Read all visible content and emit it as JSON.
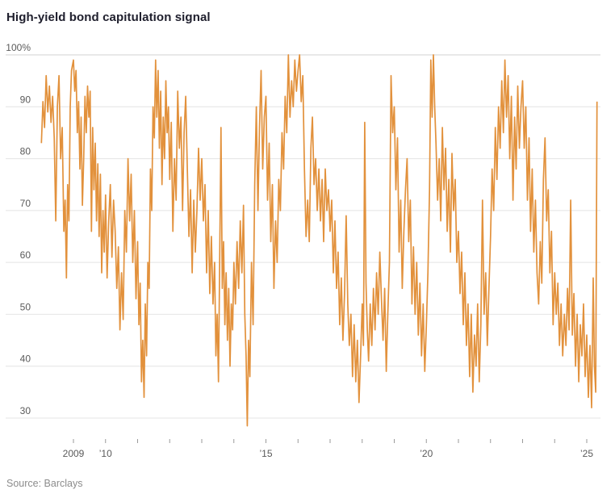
{
  "title": "High-yield bond capitulation signal",
  "source": "Source: Barclays",
  "chart_data": {
    "type": "line",
    "title": "High-yield bond capitulation signal",
    "series_name": "High-yield bond capitulation signal",
    "unit": "%",
    "line_color": "#e2913c",
    "grid": "horizontal",
    "legend": "none",
    "y_axis": {
      "range": [
        30,
        100
      ],
      "tick_values": [
        100,
        90,
        80,
        70,
        60,
        50,
        40,
        30
      ],
      "tick_labels": [
        "100%",
        "90",
        "80",
        "70",
        "60",
        "50",
        "40",
        "30"
      ]
    },
    "x_axis": {
      "range": [
        2008,
        2025.5
      ],
      "tick_years": [
        2009,
        2010,
        2011,
        2012,
        2013,
        2014,
        2015,
        2016,
        2017,
        2018,
        2019,
        2020,
        2021,
        2022,
        2023,
        2024,
        2025
      ],
      "labeled_ticks": [
        {
          "year": 2009,
          "label": "2009"
        },
        {
          "year": 2010,
          "label": "’10"
        },
        {
          "year": 2015,
          "label": "’15"
        },
        {
          "year": 2020,
          "label": "’20"
        },
        {
          "year": 2025,
          "label": "’25"
        }
      ]
    },
    "points": [
      [
        2008.0,
        83
      ],
      [
        2008.05,
        91
      ],
      [
        2008.1,
        86
      ],
      [
        2008.15,
        96
      ],
      [
        2008.2,
        89
      ],
      [
        2008.25,
        94
      ],
      [
        2008.3,
        87
      ],
      [
        2008.35,
        92
      ],
      [
        2008.4,
        84
      ],
      [
        2008.45,
        68
      ],
      [
        2008.5,
        90
      ],
      [
        2008.55,
        96
      ],
      [
        2008.6,
        80
      ],
      [
        2008.65,
        86
      ],
      [
        2008.7,
        66
      ],
      [
        2008.74,
        72
      ],
      [
        2008.78,
        57
      ],
      [
        2008.82,
        75
      ],
      [
        2008.86,
        68
      ],
      [
        2008.9,
        90
      ],
      [
        2008.94,
        97
      ],
      [
        2009.0,
        99
      ],
      [
        2009.04,
        93
      ],
      [
        2009.08,
        97
      ],
      [
        2009.12,
        85
      ],
      [
        2009.16,
        91
      ],
      [
        2009.2,
        78
      ],
      [
        2009.24,
        88
      ],
      [
        2009.28,
        71
      ],
      [
        2009.32,
        80
      ],
      [
        2009.36,
        92
      ],
      [
        2009.4,
        85
      ],
      [
        2009.44,
        94
      ],
      [
        2009.48,
        88
      ],
      [
        2009.52,
        93
      ],
      [
        2009.56,
        66
      ],
      [
        2009.6,
        86
      ],
      [
        2009.64,
        74
      ],
      [
        2009.68,
        83
      ],
      [
        2009.72,
        68
      ],
      [
        2009.76,
        79
      ],
      [
        2009.8,
        65
      ],
      [
        2009.84,
        77
      ],
      [
        2009.88,
        58
      ],
      [
        2009.92,
        70
      ],
      [
        2009.96,
        62
      ],
      [
        2010.0,
        73
      ],
      [
        2010.05,
        57
      ],
      [
        2010.1,
        68
      ],
      [
        2010.15,
        75
      ],
      [
        2010.2,
        61
      ],
      [
        2010.25,
        72
      ],
      [
        2010.3,
        66
      ],
      [
        2010.35,
        55
      ],
      [
        2010.4,
        63
      ],
      [
        2010.45,
        47
      ],
      [
        2010.5,
        58
      ],
      [
        2010.55,
        49
      ],
      [
        2010.6,
        70
      ],
      [
        2010.65,
        62
      ],
      [
        2010.7,
        80
      ],
      [
        2010.75,
        68
      ],
      [
        2010.8,
        77
      ],
      [
        2010.85,
        60
      ],
      [
        2010.9,
        70
      ],
      [
        2010.95,
        53
      ],
      [
        2011.0,
        64
      ],
      [
        2011.04,
        48
      ],
      [
        2011.08,
        56
      ],
      [
        2011.12,
        37
      ],
      [
        2011.16,
        45
      ],
      [
        2011.2,
        34
      ],
      [
        2011.24,
        52
      ],
      [
        2011.28,
        42
      ],
      [
        2011.32,
        60
      ],
      [
        2011.36,
        55
      ],
      [
        2011.4,
        78
      ],
      [
        2011.44,
        70
      ],
      [
        2011.48,
        90
      ],
      [
        2011.52,
        84
      ],
      [
        2011.56,
        99
      ],
      [
        2011.6,
        88
      ],
      [
        2011.64,
        97
      ],
      [
        2011.68,
        82
      ],
      [
        2011.72,
        93
      ],
      [
        2011.76,
        75
      ],
      [
        2011.8,
        88
      ],
      [
        2011.84,
        80
      ],
      [
        2011.88,
        95
      ],
      [
        2011.92,
        85
      ],
      [
        2011.96,
        90
      ],
      [
        2012.0,
        76
      ],
      [
        2012.05,
        87
      ],
      [
        2012.1,
        66
      ],
      [
        2012.15,
        80
      ],
      [
        2012.2,
        72
      ],
      [
        2012.25,
        93
      ],
      [
        2012.3,
        82
      ],
      [
        2012.35,
        88
      ],
      [
        2012.4,
        70
      ],
      [
        2012.45,
        85
      ],
      [
        2012.5,
        92
      ],
      [
        2012.55,
        78
      ],
      [
        2012.6,
        65
      ],
      [
        2012.65,
        74
      ],
      [
        2012.7,
        58
      ],
      [
        2012.75,
        72
      ],
      [
        2012.8,
        62
      ],
      [
        2012.85,
        70
      ],
      [
        2012.9,
        82
      ],
      [
        2012.95,
        72
      ],
      [
        2013.0,
        80
      ],
      [
        2013.05,
        68
      ],
      [
        2013.1,
        75
      ],
      [
        2013.15,
        58
      ],
      [
        2013.2,
        70
      ],
      [
        2013.25,
        54
      ],
      [
        2013.3,
        65
      ],
      [
        2013.35,
        52
      ],
      [
        2013.4,
        60
      ],
      [
        2013.44,
        42
      ],
      [
        2013.48,
        50
      ],
      [
        2013.52,
        37
      ],
      [
        2013.56,
        62
      ],
      [
        2013.6,
        86
      ],
      [
        2013.64,
        55
      ],
      [
        2013.68,
        64
      ],
      [
        2013.72,
        48
      ],
      [
        2013.76,
        58
      ],
      [
        2013.8,
        45
      ],
      [
        2013.84,
        55
      ],
      [
        2013.88,
        40
      ],
      [
        2013.92,
        52
      ],
      [
        2013.96,
        47
      ],
      [
        2014.0,
        60
      ],
      [
        2014.05,
        52
      ],
      [
        2014.1,
        64
      ],
      [
        2014.15,
        55
      ],
      [
        2014.2,
        68
      ],
      [
        2014.25,
        58
      ],
      [
        2014.3,
        71
      ],
      [
        2014.34,
        50
      ],
      [
        2014.38,
        42
      ],
      [
        2014.42,
        28.5
      ],
      [
        2014.46,
        45
      ],
      [
        2014.5,
        38
      ],
      [
        2014.55,
        60
      ],
      [
        2014.6,
        48
      ],
      [
        2014.65,
        75
      ],
      [
        2014.7,
        90
      ],
      [
        2014.75,
        70
      ],
      [
        2014.8,
        86
      ],
      [
        2014.85,
        97
      ],
      [
        2014.9,
        78
      ],
      [
        2014.95,
        88
      ],
      [
        2015.0,
        92
      ],
      [
        2015.05,
        72
      ],
      [
        2015.1,
        83
      ],
      [
        2015.15,
        64
      ],
      [
        2015.2,
        75
      ],
      [
        2015.25,
        55
      ],
      [
        2015.3,
        68
      ],
      [
        2015.35,
        60
      ],
      [
        2015.4,
        76
      ],
      [
        2015.45,
        70
      ],
      [
        2015.5,
        85
      ],
      [
        2015.55,
        78
      ],
      [
        2015.6,
        92
      ],
      [
        2015.65,
        85
      ],
      [
        2015.7,
        100
      ],
      [
        2015.75,
        88
      ],
      [
        2015.8,
        95
      ],
      [
        2015.85,
        90
      ],
      [
        2015.9,
        99
      ],
      [
        2015.95,
        93
      ],
      [
        2016.0,
        97
      ],
      [
        2016.05,
        100
      ],
      [
        2016.1,
        91
      ],
      [
        2016.15,
        96
      ],
      [
        2016.2,
        78
      ],
      [
        2016.25,
        65
      ],
      [
        2016.3,
        72
      ],
      [
        2016.35,
        64
      ],
      [
        2016.4,
        82
      ],
      [
        2016.45,
        88
      ],
      [
        2016.5,
        75
      ],
      [
        2016.55,
        80
      ],
      [
        2016.6,
        70
      ],
      [
        2016.65,
        78
      ],
      [
        2016.7,
        68
      ],
      [
        2016.75,
        76
      ],
      [
        2016.8,
        64
      ],
      [
        2016.85,
        78
      ],
      [
        2016.9,
        70
      ],
      [
        2016.95,
        74
      ],
      [
        2017.0,
        66
      ],
      [
        2017.05,
        72
      ],
      [
        2017.1,
        58
      ],
      [
        2017.15,
        68
      ],
      [
        2017.2,
        55
      ],
      [
        2017.25,
        62
      ],
      [
        2017.3,
        48
      ],
      [
        2017.35,
        57
      ],
      [
        2017.4,
        45
      ],
      [
        2017.45,
        54
      ],
      [
        2017.5,
        69
      ],
      [
        2017.55,
        52
      ],
      [
        2017.6,
        44
      ],
      [
        2017.65,
        50
      ],
      [
        2017.7,
        38
      ],
      [
        2017.75,
        48
      ],
      [
        2017.8,
        37
      ],
      [
        2017.85,
        45
      ],
      [
        2017.9,
        33
      ],
      [
        2017.95,
        42
      ],
      [
        2018.0,
        52
      ],
      [
        2018.04,
        44
      ],
      [
        2018.08,
        87
      ],
      [
        2018.12,
        56
      ],
      [
        2018.16,
        47
      ],
      [
        2018.2,
        41
      ],
      [
        2018.25,
        52
      ],
      [
        2018.3,
        44
      ],
      [
        2018.35,
        55
      ],
      [
        2018.4,
        47
      ],
      [
        2018.45,
        58
      ],
      [
        2018.5,
        50
      ],
      [
        2018.55,
        62
      ],
      [
        2018.6,
        53
      ],
      [
        2018.65,
        45
      ],
      [
        2018.7,
        55
      ],
      [
        2018.75,
        39
      ],
      [
        2018.8,
        50
      ],
      [
        2018.85,
        60
      ],
      [
        2018.9,
        96
      ],
      [
        2018.95,
        85
      ],
      [
        2019.0,
        90
      ],
      [
        2019.05,
        74
      ],
      [
        2019.1,
        84
      ],
      [
        2019.15,
        62
      ],
      [
        2019.2,
        72
      ],
      [
        2019.25,
        55
      ],
      [
        2019.3,
        66
      ],
      [
        2019.35,
        74
      ],
      [
        2019.4,
        80
      ],
      [
        2019.45,
        64
      ],
      [
        2019.5,
        72
      ],
      [
        2019.55,
        52
      ],
      [
        2019.6,
        63
      ],
      [
        2019.65,
        50
      ],
      [
        2019.7,
        60
      ],
      [
        2019.75,
        46
      ],
      [
        2019.8,
        56
      ],
      [
        2019.85,
        42
      ],
      [
        2019.9,
        52
      ],
      [
        2019.95,
        39
      ],
      [
        2020.0,
        48
      ],
      [
        2020.05,
        58
      ],
      [
        2020.1,
        74
      ],
      [
        2020.14,
        99
      ],
      [
        2020.18,
        88
      ],
      [
        2020.22,
        100
      ],
      [
        2020.26,
        90
      ],
      [
        2020.3,
        83
      ],
      [
        2020.35,
        72
      ],
      [
        2020.4,
        80
      ],
      [
        2020.45,
        68
      ],
      [
        2020.5,
        86
      ],
      [
        2020.55,
        74
      ],
      [
        2020.6,
        82
      ],
      [
        2020.65,
        66
      ],
      [
        2020.7,
        76
      ],
      [
        2020.75,
        62
      ],
      [
        2020.8,
        81
      ],
      [
        2020.85,
        70
      ],
      [
        2020.9,
        76
      ],
      [
        2020.95,
        60
      ],
      [
        2021.0,
        66
      ],
      [
        2021.05,
        54
      ],
      [
        2021.1,
        62
      ],
      [
        2021.15,
        48
      ],
      [
        2021.2,
        58
      ],
      [
        2021.25,
        44
      ],
      [
        2021.3,
        52
      ],
      [
        2021.35,
        38
      ],
      [
        2021.4,
        50
      ],
      [
        2021.45,
        35
      ],
      [
        2021.5,
        46
      ],
      [
        2021.55,
        40
      ],
      [
        2021.6,
        52
      ],
      [
        2021.65,
        37
      ],
      [
        2021.7,
        48
      ],
      [
        2021.75,
        72
      ],
      [
        2021.8,
        50
      ],
      [
        2021.85,
        58
      ],
      [
        2021.9,
        44
      ],
      [
        2021.95,
        55
      ],
      [
        2022.0,
        65
      ],
      [
        2022.05,
        78
      ],
      [
        2022.1,
        70
      ],
      [
        2022.15,
        86
      ],
      [
        2022.2,
        76
      ],
      [
        2022.25,
        90
      ],
      [
        2022.3,
        82
      ],
      [
        2022.35,
        95
      ],
      [
        2022.4,
        85
      ],
      [
        2022.45,
        99
      ],
      [
        2022.5,
        88
      ],
      [
        2022.55,
        96
      ],
      [
        2022.6,
        80
      ],
      [
        2022.65,
        92
      ],
      [
        2022.7,
        72
      ],
      [
        2022.75,
        88
      ],
      [
        2022.8,
        78
      ],
      [
        2022.85,
        94
      ],
      [
        2022.9,
        82
      ],
      [
        2022.95,
        90
      ],
      [
        2023.0,
        95
      ],
      [
        2023.05,
        82
      ],
      [
        2023.1,
        90
      ],
      [
        2023.15,
        72
      ],
      [
        2023.2,
        84
      ],
      [
        2023.25,
        66
      ],
      [
        2023.3,
        78
      ],
      [
        2023.35,
        62
      ],
      [
        2023.4,
        72
      ],
      [
        2023.45,
        58
      ],
      [
        2023.5,
        52
      ],
      [
        2023.55,
        64
      ],
      [
        2023.6,
        56
      ],
      [
        2023.65,
        76
      ],
      [
        2023.7,
        84
      ],
      [
        2023.75,
        68
      ],
      [
        2023.8,
        74
      ],
      [
        2023.85,
        58
      ],
      [
        2023.9,
        66
      ],
      [
        2023.95,
        48
      ],
      [
        2024.0,
        58
      ],
      [
        2024.05,
        50
      ],
      [
        2024.1,
        56
      ],
      [
        2024.15,
        44
      ],
      [
        2024.2,
        52
      ],
      [
        2024.25,
        42
      ],
      [
        2024.3,
        50
      ],
      [
        2024.35,
        44
      ],
      [
        2024.4,
        55
      ],
      [
        2024.45,
        47
      ],
      [
        2024.5,
        72
      ],
      [
        2024.55,
        46
      ],
      [
        2024.6,
        54
      ],
      [
        2024.65,
        40
      ],
      [
        2024.7,
        50
      ],
      [
        2024.75,
        37
      ],
      [
        2024.8,
        48
      ],
      [
        2024.85,
        42
      ],
      [
        2024.9,
        52
      ],
      [
        2024.95,
        38
      ],
      [
        2025.0,
        46
      ],
      [
        2025.05,
        34
      ],
      [
        2025.1,
        44
      ],
      [
        2025.15,
        32
      ],
      [
        2025.2,
        57
      ],
      [
        2025.24,
        40
      ],
      [
        2025.28,
        35
      ],
      [
        2025.32,
        91
      ]
    ]
  },
  "colors": {
    "line": "#e2913c",
    "title_text": "#20202e",
    "axis_text": "#5a5a5a",
    "gridline": "#e4e4e4",
    "top_gridline": "#d2d2d2",
    "source_text": "#8c8c8c",
    "background": "#ffffff"
  }
}
